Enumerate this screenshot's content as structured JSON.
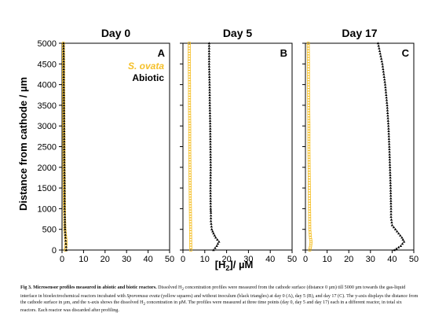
{
  "figure": {
    "y_axis_label": "Distance from cathode / µm",
    "x_axis_label": "[H2]/ µM",
    "x_axis_label_main": "[H",
    "x_axis_label_sub": "2",
    "x_axis_label_tail": "]/ µM",
    "legend": {
      "series_1": "S. ovata",
      "series_2": "Abiotic"
    },
    "series_colors": {
      "S. ovata": "#f5c02a",
      "Abiotic": "#000000"
    }
  },
  "caption": {
    "label": "Fig 3. Microsensor profiles measured in abiotic and biotic reactors.",
    "t1": " Dissolved H",
    "sub1": "2",
    "t2": " concentration profiles were measured from the cathode surface (distance 0 µm) till 5000 µm towards the gas-liquid interface in bioelectrochemical reactors incubated with ",
    "organism": "Sporomusa ovata",
    "t3": " (yellow squares) and without inoculum (black triangles) at day 0 (A), day 5 (B), and day 17 (C). The y-axis displays the distance from the cathode surface in µm, and the x-axis shows the dissolved H",
    "sub2": "2",
    "t4": " concentration in µM. The profiles were measured at three time points (day 0, day 5 and day 17) each in a different reactor, in total six reactors. Each reactor was discarded after profiling."
  },
  "chart_data": [
    {
      "type": "scatter",
      "title": "Day 0",
      "panel_label": "A",
      "xlim": [
        0,
        50
      ],
      "ylim": [
        0,
        5000
      ],
      "x_ticks": [
        0,
        10,
        20,
        30,
        40,
        50
      ],
      "y_ticks": [
        0,
        500,
        1000,
        1500,
        2000,
        2500,
        3000,
        3500,
        4000,
        4500,
        5000
      ],
      "series": [
        {
          "name": "S. ovata",
          "marker": "square",
          "points": [
            [
              1.5,
              0
            ],
            [
              1.8,
              100
            ],
            [
              1.9,
              200
            ],
            [
              1.7,
              300
            ],
            [
              1.5,
              400
            ],
            [
              1.3,
              500
            ],
            [
              1.2,
              700
            ],
            [
              1.1,
              1000
            ],
            [
              1.0,
              1500
            ],
            [
              0.9,
              2000
            ],
            [
              0.9,
              2500
            ],
            [
              0.8,
              3000
            ],
            [
              0.8,
              3500
            ],
            [
              0.7,
              4000
            ],
            [
              0.7,
              4500
            ],
            [
              0.6,
              5000
            ]
          ]
        },
        {
          "name": "Abiotic",
          "marker": "triangle",
          "points": [
            [
              2.0,
              0
            ],
            [
              1.8,
              150
            ],
            [
              1.6,
              300
            ],
            [
              1.4,
              500
            ],
            [
              1.3,
              800
            ],
            [
              1.2,
              1000
            ],
            [
              1.2,
              1500
            ],
            [
              1.1,
              2000
            ],
            [
              1.0,
              2500
            ],
            [
              1.0,
              3000
            ],
            [
              0.9,
              3500
            ],
            [
              0.8,
              4000
            ],
            [
              0.8,
              4500
            ],
            [
              0.7,
              5000
            ]
          ]
        }
      ]
    },
    {
      "type": "scatter",
      "title": "Day 5",
      "panel_label": "B",
      "xlim": [
        0,
        50
      ],
      "ylim": [
        0,
        5000
      ],
      "x_ticks": [
        0,
        10,
        20,
        30,
        40,
        50
      ],
      "y_ticks": [
        0,
        500,
        1000,
        1500,
        2000,
        2500,
        3000,
        3500,
        4000,
        4500,
        5000
      ],
      "series": [
        {
          "name": "S. ovata",
          "marker": "square",
          "points": [
            [
              3.6,
              0
            ],
            [
              3.5,
              500
            ],
            [
              3.4,
              1000
            ],
            [
              3.3,
              1500
            ],
            [
              3.2,
              2000
            ],
            [
              3.1,
              2500
            ],
            [
              3.1,
              3000
            ],
            [
              3.0,
              3500
            ],
            [
              3.0,
              4000
            ],
            [
              2.9,
              4500
            ],
            [
              2.9,
              5000
            ]
          ]
        },
        {
          "name": "Abiotic",
          "marker": "triangle",
          "points": [
            [
              14.0,
              0
            ],
            [
              15.5,
              100
            ],
            [
              16.5,
              200
            ],
            [
              15.0,
              300
            ],
            [
              14.0,
              400
            ],
            [
              13.2,
              500
            ],
            [
              12.8,
              700
            ],
            [
              12.8,
              900
            ],
            [
              12.7,
              1000
            ],
            [
              12.6,
              1500
            ],
            [
              12.7,
              2000
            ],
            [
              12.6,
              2500
            ],
            [
              12.5,
              3000
            ],
            [
              12.3,
              3500
            ],
            [
              12.2,
              4000
            ],
            [
              12.0,
              4500
            ],
            [
              12.0,
              5000
            ]
          ]
        }
      ]
    },
    {
      "type": "scatter",
      "title": "Day 17",
      "panel_label": "C",
      "xlim": [
        0,
        50
      ],
      "ylim": [
        0,
        5000
      ],
      "x_ticks": [
        0,
        10,
        20,
        30,
        40,
        50
      ],
      "y_ticks": [
        0,
        500,
        1000,
        1500,
        2000,
        2500,
        3000,
        3500,
        4000,
        4500,
        5000
      ],
      "series": [
        {
          "name": "S. ovata",
          "marker": "square",
          "points": [
            [
              2.0,
              0
            ],
            [
              2.4,
              100
            ],
            [
              2.6,
              200
            ],
            [
              2.3,
              300
            ],
            [
              2.0,
              500
            ],
            [
              1.9,
              1000
            ],
            [
              1.8,
              1500
            ],
            [
              1.7,
              2000
            ],
            [
              1.6,
              2500
            ],
            [
              1.6,
              3000
            ],
            [
              1.5,
              3500
            ],
            [
              1.4,
              4000
            ],
            [
              1.4,
              4500
            ],
            [
              1.3,
              5000
            ]
          ]
        },
        {
          "name": "Abiotic",
          "marker": "triangle",
          "points": [
            [
              41.0,
              0
            ],
            [
              44.0,
              100
            ],
            [
              45.5,
              200
            ],
            [
              44.5,
              300
            ],
            [
              43.0,
              400
            ],
            [
              41.5,
              500
            ],
            [
              40.0,
              600
            ],
            [
              39.5,
              800
            ],
            [
              39.5,
              1000
            ],
            [
              39.3,
              1500
            ],
            [
              39.0,
              2000
            ],
            [
              38.7,
              2500
            ],
            [
              38.3,
              3000
            ],
            [
              37.7,
              3500
            ],
            [
              36.8,
              4000
            ],
            [
              35.5,
              4500
            ],
            [
              33.5,
              5000
            ]
          ]
        }
      ]
    }
  ]
}
